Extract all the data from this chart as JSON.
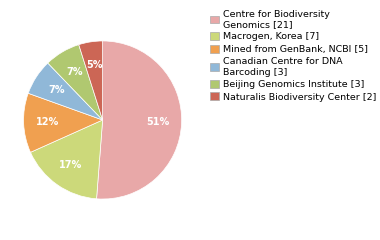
{
  "labels": [
    "Centre for Biodiversity\nGenomics [21]",
    "Macrogen, Korea [7]",
    "Mined from GenBank, NCBI [5]",
    "Canadian Centre for DNA\nBarcoding [3]",
    "Beijing Genomics Institute [3]",
    "Naturalis Biodiversity Center [2]"
  ],
  "values": [
    21,
    7,
    5,
    3,
    3,
    2
  ],
  "colors": [
    "#e8a8a8",
    "#ccd97a",
    "#f0a050",
    "#90b8d8",
    "#b0c870",
    "#cc6655"
  ],
  "background_color": "#ffffff",
  "pct_fontsize": 7.0,
  "legend_fontsize": 6.8,
  "startangle": 90
}
